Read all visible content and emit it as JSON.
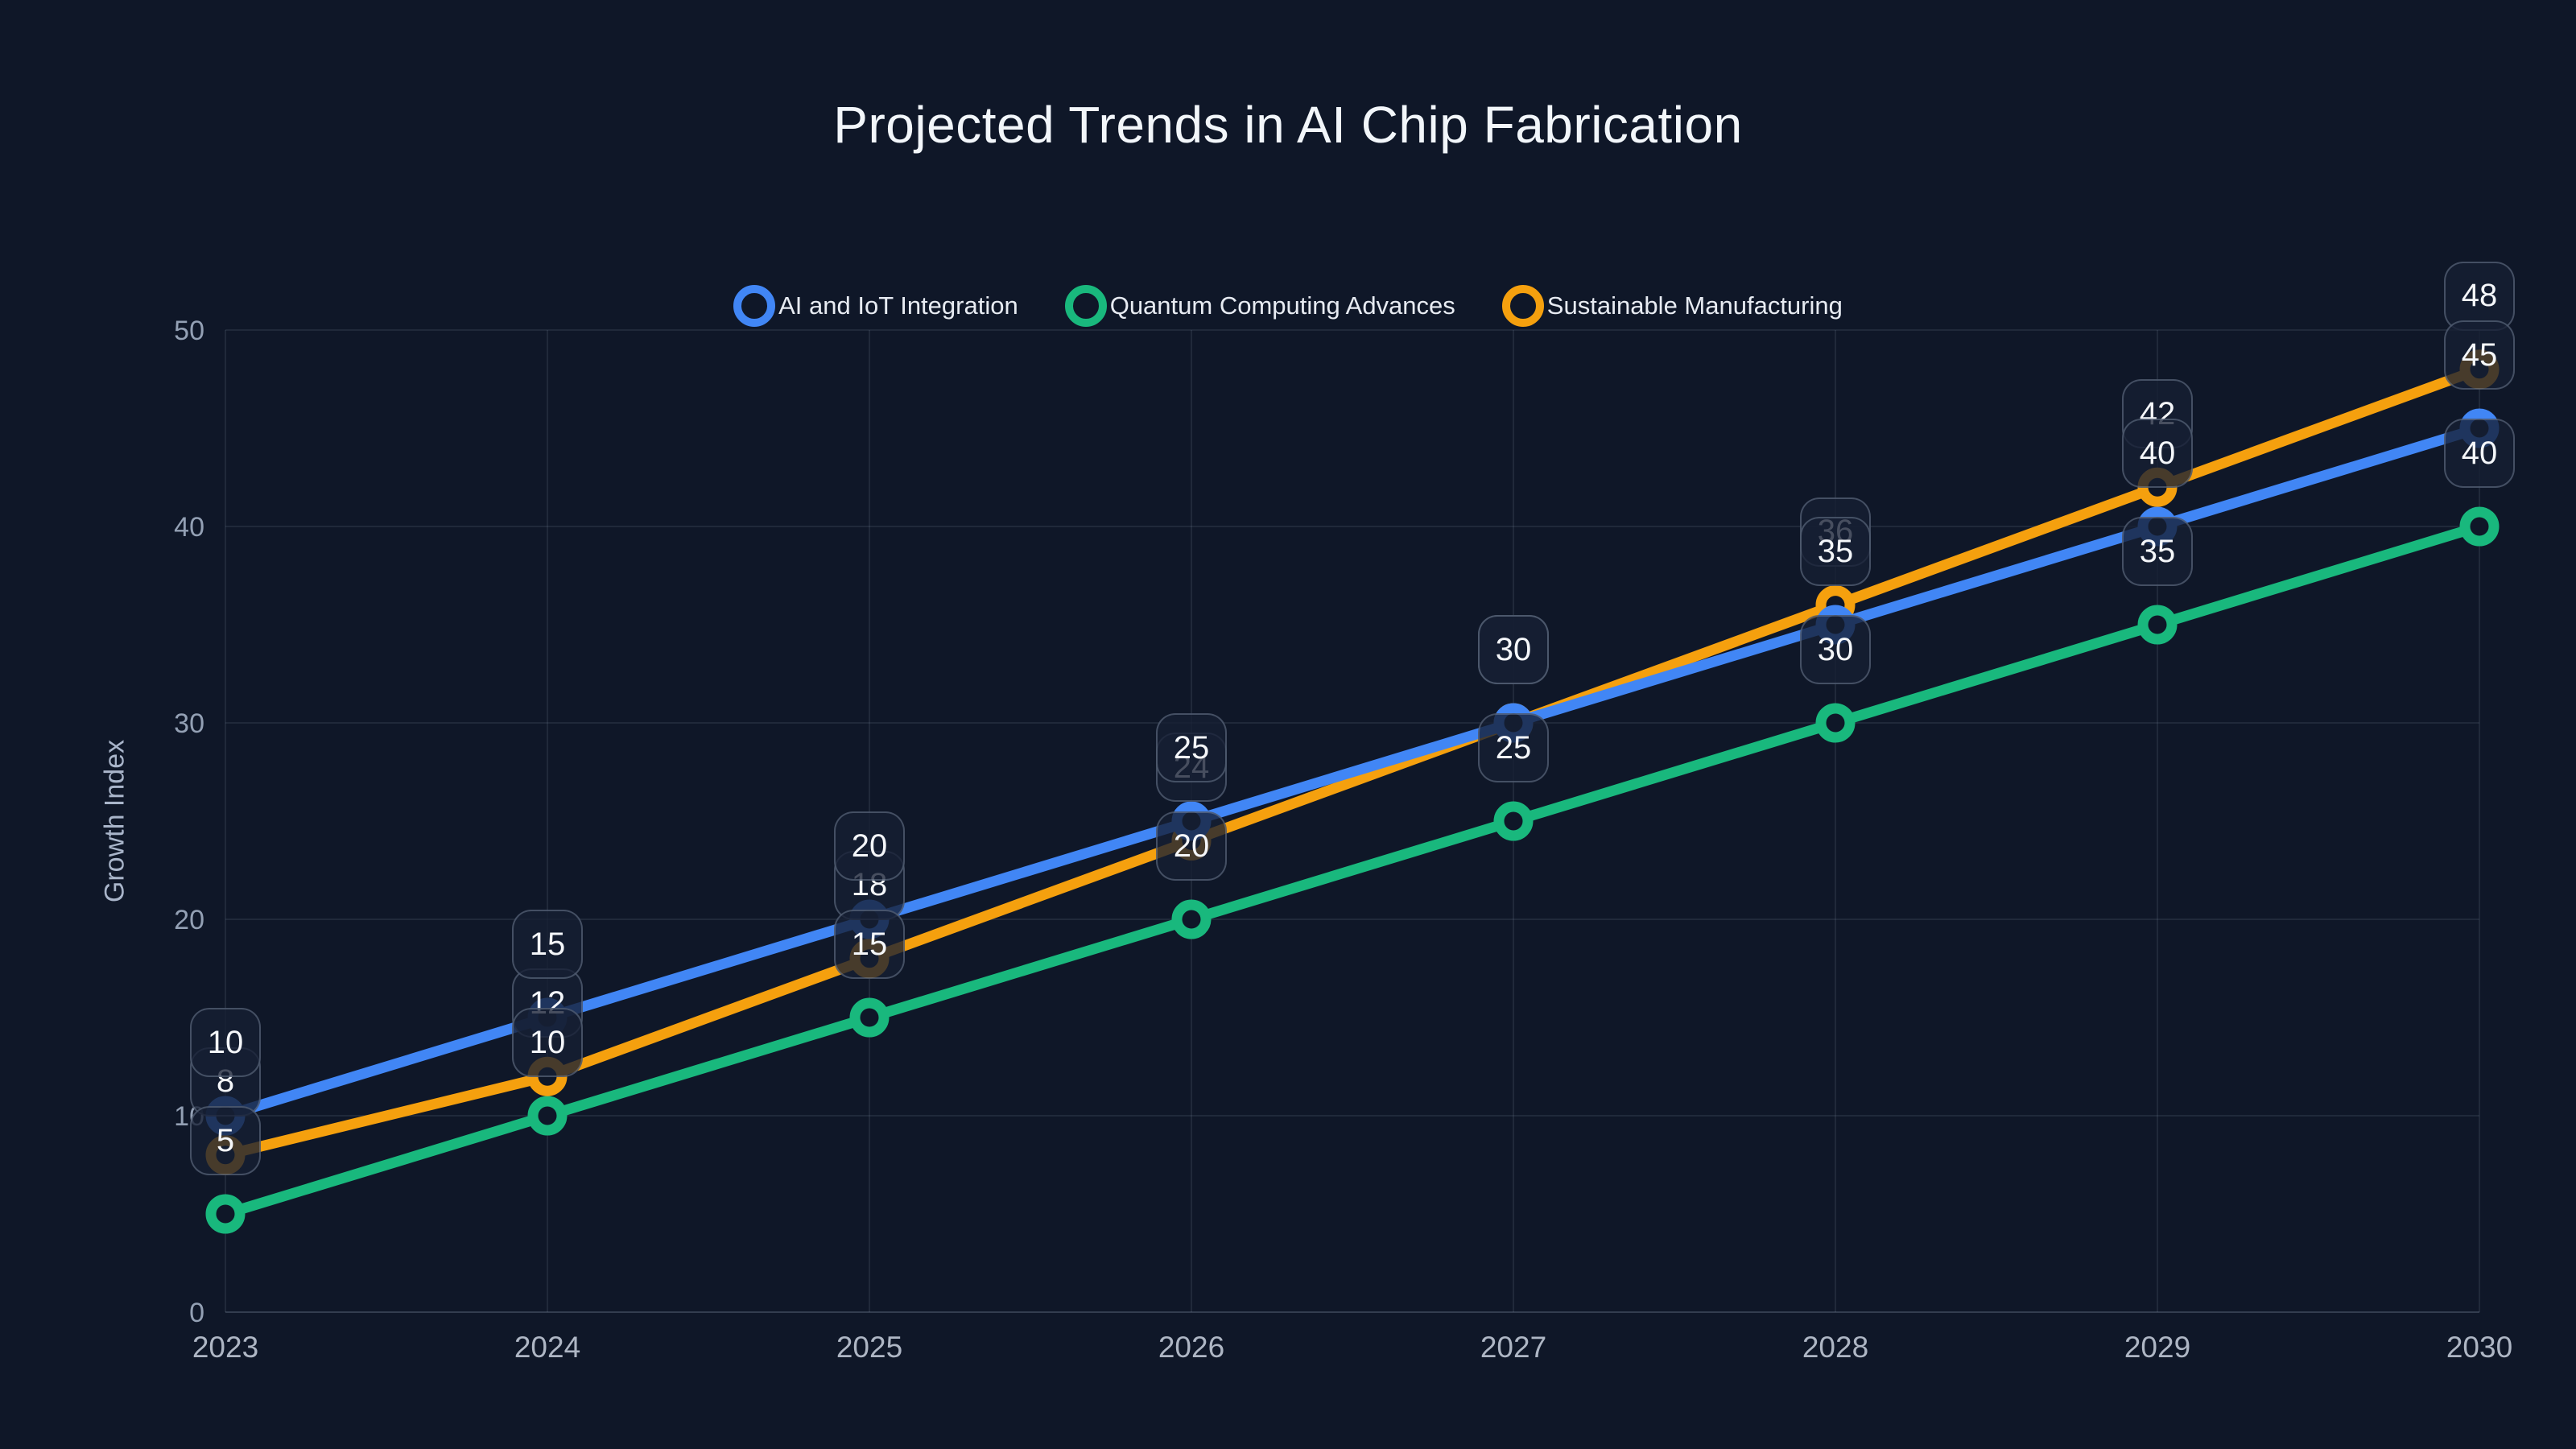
{
  "title": "Projected Trends in AI Chip Fabrication",
  "colors": {
    "background": "#0f1728",
    "blue": "#4186f5",
    "green": "#19b87d",
    "orange": "#f5a00e"
  },
  "chart_data": {
    "type": "line",
    "title": "Projected Trends in AI Chip Fabrication",
    "xlabel": "",
    "ylabel": "Growth Index",
    "categories": [
      "2023",
      "2024",
      "2025",
      "2026",
      "2027",
      "2028",
      "2029",
      "2030"
    ],
    "y_ticks": [
      0,
      10,
      20,
      30,
      40,
      50
    ],
    "ylim": [
      0,
      50
    ],
    "grid": true,
    "legend_position": "top-center",
    "point_style": "open-circle",
    "data_labels": true,
    "series": [
      {
        "name": "AI and IoT Integration",
        "color": "#4186f5",
        "values": [
          10,
          15,
          20,
          25,
          30,
          35,
          40,
          45
        ]
      },
      {
        "name": "Quantum Computing Advances",
        "color": "#19b87d",
        "values": [
          5,
          10,
          15,
          20,
          25,
          30,
          35,
          40
        ]
      },
      {
        "name": "Sustainable Manufacturing",
        "color": "#f5a00e",
        "values": [
          8,
          12,
          18,
          24,
          30,
          36,
          42,
          48
        ]
      }
    ]
  }
}
